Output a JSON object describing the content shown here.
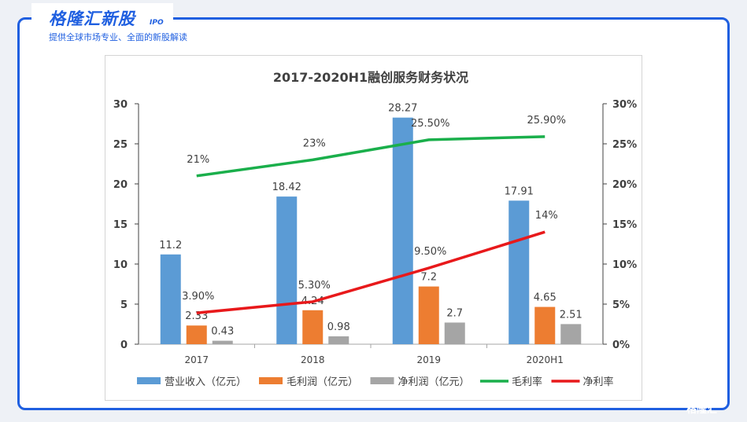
{
  "brand": {
    "title": "格隆汇新股",
    "badge": "IPO",
    "subtitle": "提供全球市场专业、全面的新股解读",
    "watermark": "格隆汇"
  },
  "chart_data": {
    "type": "bar",
    "title": "2017-2020H1融创服务财务状况",
    "categories": [
      "2017",
      "2018",
      "2019",
      "2020H1"
    ],
    "series": [
      {
        "name": "营业收入（亿元）",
        "kind": "bar",
        "color": "#5b9bd5",
        "values": [
          11.2,
          18.42,
          28.27,
          17.91
        ],
        "labels": [
          "11.2",
          "18.42",
          "28.27",
          "17.91"
        ]
      },
      {
        "name": "毛利润（亿元）",
        "kind": "bar",
        "color": "#ed7d31",
        "values": [
          2.33,
          4.24,
          7.2,
          4.65
        ],
        "labels": [
          "2.33",
          "4.24",
          "7.2",
          "4.65"
        ]
      },
      {
        "name": "净利润（亿元）",
        "kind": "bar",
        "color": "#a5a5a5",
        "values": [
          0.43,
          0.98,
          2.7,
          2.51
        ],
        "labels": [
          "0.43",
          "0.98",
          "2.7",
          "2.51"
        ]
      },
      {
        "name": "毛利率",
        "kind": "line",
        "axis": "right",
        "color": "#1aaf4b",
        "values": [
          21,
          23,
          25.5,
          25.9
        ],
        "labels": [
          "21%",
          "23%",
          "25.50%",
          "25.90%"
        ]
      },
      {
        "name": "净利率",
        "kind": "line",
        "axis": "right",
        "color": "#e8191b",
        "values": [
          3.9,
          5.3,
          9.5,
          14
        ],
        "labels": [
          "3.90%",
          "5.30%",
          "9.50%",
          "14%"
        ]
      }
    ],
    "ylim": [
      0,
      30
    ],
    "yticks": [
      "0",
      "5",
      "10",
      "15",
      "20",
      "25",
      "30"
    ],
    "y2lim": [
      0,
      30
    ],
    "y2ticks": [
      "0%",
      "5%",
      "10%",
      "15%",
      "20%",
      "25%",
      "30%"
    ],
    "grid": false,
    "legend_position": "bottom"
  }
}
